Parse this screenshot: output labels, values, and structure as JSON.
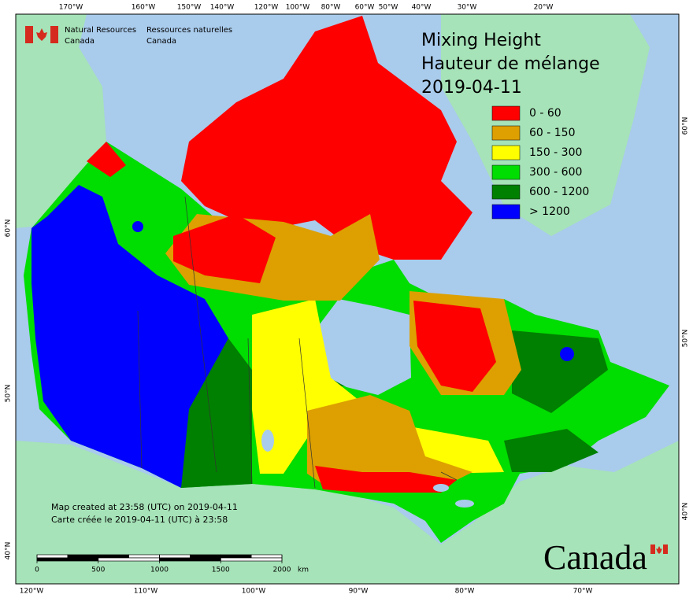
{
  "header": {
    "agency_en": [
      "Natural Resources",
      "Canada"
    ],
    "agency_fr": [
      "Ressources naturelles",
      "Canada"
    ]
  },
  "title": [
    "Mixing Height",
    "Hauteur de mélange",
    "2019-04-11"
  ],
  "legend": [
    {
      "label": "0 - 60",
      "color": "#ff0000"
    },
    {
      "label": "60 - 150",
      "color": "#dda000"
    },
    {
      "label": "150 - 300",
      "color": "#ffff00"
    },
    {
      "label": "300 - 600",
      "color": "#00dd00"
    },
    {
      "label": "600 - 1200",
      "color": "#008000"
    },
    {
      "label": "> 1200",
      "color": "#0000ff"
    }
  ],
  "graticule": {
    "top": [
      "170°W",
      "160°W",
      "150°W",
      "140°W",
      "120°W",
      "100°W",
      "80°W",
      "60°W",
      "50°W",
      "40°W",
      "30°W",
      "20°W"
    ],
    "bottom": [
      "120°W",
      "110°W",
      "100°W",
      "90°W",
      "80°W",
      "70°W"
    ],
    "left": [
      "60°N",
      "50°N",
      "40°N"
    ],
    "right": [
      "60°N",
      "50°N",
      "40°N"
    ]
  },
  "footer": [
    "Map created at 23:58 (UTC) on 2019-04-11",
    "Carte créée le 2019-04-11 (UTC) à 23:58"
  ],
  "scale": {
    "ticks": [
      0,
      500,
      1000,
      1500,
      2000
    ],
    "unit": "km"
  },
  "wordmark": "Canada"
}
